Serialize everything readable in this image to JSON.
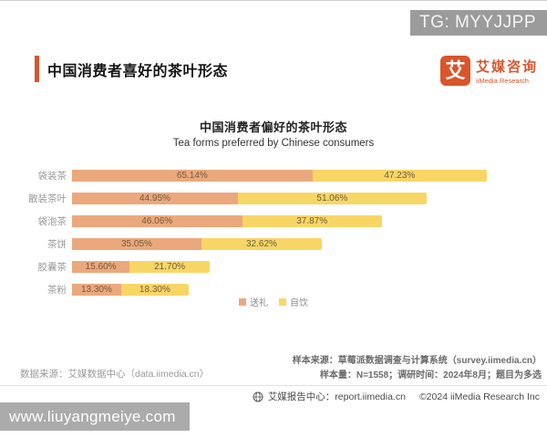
{
  "badge": {
    "text": "TG: MYYJJPP"
  },
  "header": {
    "title": "中国消费者喜好的茶叶形态",
    "logo": {
      "mark": "艾",
      "name_cn": "艾媒咨询",
      "name_en": "iiMedia Research"
    }
  },
  "chart_data": {
    "type": "bar",
    "orientation": "horizontal",
    "stacked": true,
    "title": "中国消费者偏好的茶叶形态",
    "subtitle": "Tea forms preferred by Chinese consumers",
    "categories": [
      "袋装茶",
      "散装茶叶",
      "袋泡茶",
      "茶饼",
      "胶囊茶",
      "茶粉"
    ],
    "series": [
      {
        "name": "送礼",
        "color": "#ECA87D",
        "values": [
          65.14,
          44.95,
          46.06,
          35.05,
          15.6,
          13.3
        ]
      },
      {
        "name": "自饮",
        "color": "#F8D666",
        "values": [
          47.23,
          51.06,
          37.87,
          32.62,
          21.7,
          18.3
        ]
      }
    ],
    "value_suffix": "%",
    "value_decimals": 2,
    "legend_position": "bottom",
    "axis_max_total": 112.37,
    "grid": false
  },
  "footer": {
    "data_source": "数据来源：艾媒数据中心（data.iimedia.cn）",
    "sample_source": "样本来源：草莓派数据调查与计算系统（survey.iimedia.cn）",
    "sample_info": "样本量：N=1558；调研时间：2024年8月；题目为多选",
    "report_center": "艾媒报告中心：report.iimedia.cn",
    "copyright": "©2024  iiMedia Research  Inc"
  },
  "watermark": {
    "url": "www.liuyangmeiye.com"
  },
  "colors": {
    "accent_orange": "#D9552B",
    "bar_gift": "#ECA87D",
    "bar_self": "#F8D666",
    "badge_gray": "#9B9B9B",
    "watermark_gray": "#ABABAB"
  }
}
